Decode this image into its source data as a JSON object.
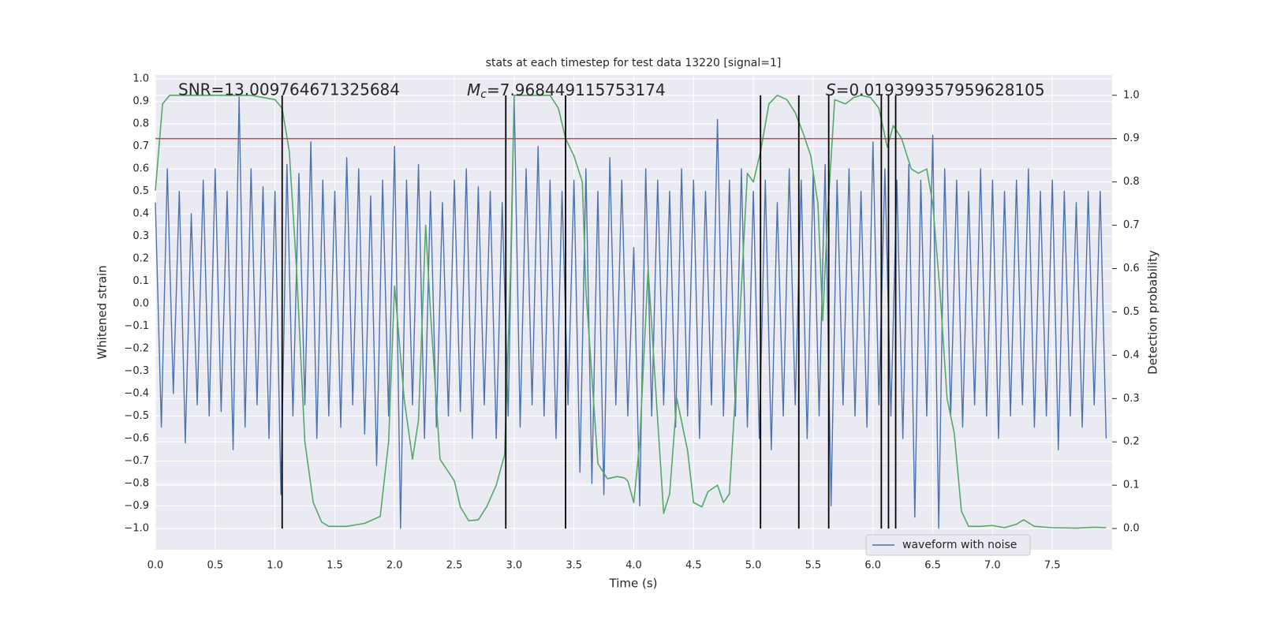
{
  "chart_data": {
    "type": "line",
    "title": "stats at each timestep for test data 13220 [signal=1]",
    "x_label": "Time (s)",
    "y_label": "Whitened strain",
    "y2_label": "Detection probability",
    "annotations": {
      "snr": "SNR=13.009764671325684",
      "mc": {
        "symbol": "M",
        "subscript": "c",
        "text": "=7.968449115753174"
      },
      "s": {
        "symbol": "S",
        "text": "=0.019399357959628105"
      }
    },
    "xlim": [
      0,
      8.0
    ],
    "ylim": [
      -1.095,
      1.018
    ],
    "y2lim": [
      -0.049,
      1.047
    ],
    "xticks": [
      {
        "value": 0,
        "label": "0.0"
      },
      0.5,
      {
        "value": 1,
        "label": "1.0"
      },
      1.5,
      {
        "value": 2,
        "label": "2.0"
      },
      2.5,
      {
        "value": 3,
        "label": "3.0"
      },
      3.5,
      {
        "value": 4,
        "label": "4.0"
      },
      4.5,
      {
        "value": 5,
        "label": "5.0"
      },
      5.5,
      {
        "value": 6,
        "label": "6.0"
      },
      6.5,
      {
        "value": 7,
        "label": "7.0"
      },
      7.5
    ],
    "yticks": [
      {
        "value": -1,
        "label": "−1.0"
      },
      {
        "value": -0.9,
        "label": "−0.9"
      },
      {
        "value": -0.8,
        "label": "−0.8"
      },
      {
        "value": -0.7,
        "label": "−0.7"
      },
      {
        "value": -0.6,
        "label": "−0.6"
      },
      {
        "value": -0.5,
        "label": "−0.5"
      },
      {
        "value": -0.4,
        "label": "−0.4"
      },
      {
        "value": -0.3,
        "label": "−0.3"
      },
      {
        "value": -0.2,
        "label": "−0.2"
      },
      {
        "value": -0.1,
        "label": "−0.1"
      },
      {
        "value": 0,
        "label": "0.0"
      },
      0.1,
      0.2,
      0.3,
      0.4,
      0.5,
      0.6,
      0.7,
      0.8,
      0.9,
      {
        "value": 1,
        "label": "1.0"
      }
    ],
    "y2ticks": [
      {
        "value": 0,
        "label": "0.0"
      },
      0.1,
      0.2,
      0.3,
      0.4,
      0.5,
      0.6,
      0.7,
      0.8,
      0.9,
      {
        "value": 1,
        "label": "1.0"
      }
    ],
    "grid": true,
    "legend": "lower right",
    "threshold": {
      "value": 0.9,
      "color": "#c44e52",
      "axis": "y2"
    },
    "vlines": {
      "x": [
        1.06,
        2.93,
        3.43,
        5.06,
        5.38,
        5.63,
        6.07,
        6.13,
        6.19
      ],
      "ymin": 0,
      "ymax": 1,
      "axis": "y2",
      "color": "#000000"
    },
    "series": [
      {
        "name": "waveform with noise",
        "color": "#4c72b0",
        "x": [
          0,
          0.05,
          0.1,
          0.15,
          0.2,
          0.25,
          0.3,
          0.35,
          0.4,
          0.45,
          0.5,
          0.55,
          0.6,
          0.65,
          0.7,
          0.75,
          0.8,
          0.85,
          0.9,
          0.95,
          1,
          1.05,
          1.1,
          1.15,
          1.2,
          1.25,
          1.3,
          1.35,
          1.4,
          1.45,
          1.5,
          1.55,
          1.6,
          1.65,
          1.7,
          1.75,
          1.8,
          1.85,
          1.9,
          1.95,
          2,
          2.05,
          2.1,
          2.15,
          2.2,
          2.25,
          2.3,
          2.35,
          2.4,
          2.45,
          2.5,
          2.55,
          2.6,
          2.65,
          2.7,
          2.75,
          2.8,
          2.85,
          2.9,
          2.95,
          3,
          3.05,
          3.1,
          3.15,
          3.2,
          3.25,
          3.3,
          3.35,
          3.4,
          3.45,
          3.5,
          3.55,
          3.6,
          3.65,
          3.7,
          3.75,
          3.8,
          3.85,
          3.9,
          3.95,
          4,
          4.05,
          4.1,
          4.15,
          4.2,
          4.25,
          4.3,
          4.35,
          4.4,
          4.45,
          4.5,
          4.55,
          4.6,
          4.65,
          4.7,
          4.75,
          4.8,
          4.85,
          4.9,
          4.95,
          5,
          5.05,
          5.1,
          5.15,
          5.2,
          5.25,
          5.3,
          5.35,
          5.4,
          5.45,
          5.5,
          5.55,
          5.6,
          5.65,
          5.7,
          5.75,
          5.8,
          5.85,
          5.9,
          5.95,
          6,
          6.05,
          6.1,
          6.15,
          6.2,
          6.25,
          6.3,
          6.35,
          6.4,
          6.45,
          6.5,
          6.55,
          6.6,
          6.65,
          6.7,
          6.75,
          6.8,
          6.85,
          6.9,
          6.95,
          7,
          7.05,
          7.1,
          7.15,
          7.2,
          7.25,
          7.3,
          7.35,
          7.4,
          7.45,
          7.5,
          7.55,
          7.6,
          7.65,
          7.7,
          7.75,
          7.8,
          7.85,
          7.9,
          7.95
        ],
        "values": [
          0.45,
          -0.55,
          0.6,
          -0.4,
          0.5,
          -0.62,
          0.4,
          -0.45,
          0.55,
          -0.5,
          0.6,
          -0.48,
          0.5,
          -0.65,
          0.92,
          -0.55,
          0.6,
          -0.45,
          0.52,
          -0.6,
          0.5,
          -0.85,
          0.62,
          -0.5,
          0.58,
          -0.45,
          0.72,
          -0.6,
          0.55,
          -0.5,
          0.5,
          -0.55,
          0.65,
          -0.45,
          0.6,
          -0.58,
          0.48,
          -0.72,
          0.55,
          -0.5,
          0.7,
          -1.0,
          0.55,
          -0.45,
          0.62,
          -0.6,
          0.5,
          -0.55,
          0.45,
          -0.5,
          0.55,
          -0.48,
          0.6,
          -0.6,
          0.52,
          -0.45,
          0.5,
          -0.6,
          0.45,
          -0.5,
          0.92,
          -0.55,
          0.6,
          -0.45,
          0.7,
          -0.5,
          0.55,
          -0.6,
          0.5,
          -0.45,
          0.55,
          -0.75,
          0.6,
          -0.8,
          0.5,
          -0.85,
          0.65,
          -0.45,
          0.55,
          -0.5,
          0.25,
          -0.9,
          0.6,
          -0.5,
          0.55,
          -0.45,
          0.5,
          -0.55,
          0.6,
          -0.5,
          0.55,
          -0.6,
          0.5,
          -0.45,
          0.82,
          -0.5,
          0.55,
          -0.5,
          0.6,
          -0.55,
          0.5,
          -0.6,
          0.55,
          -0.65,
          0.45,
          -0.5,
          0.6,
          -0.45,
          0.55,
          -0.6,
          0.58,
          -0.5,
          0.62,
          -0.9,
          0.55,
          -0.45,
          0.6,
          -0.5,
          0.5,
          -0.55,
          0.72,
          -0.45,
          0.6,
          -0.5,
          0.55,
          -0.6,
          0.62,
          -0.95,
          0.55,
          -0.5,
          0.75,
          -1.0,
          0.6,
          -0.5,
          0.55,
          -0.55,
          0.5,
          -0.45,
          0.6,
          -0.5,
          0.55,
          -0.6,
          0.5,
          -0.5,
          0.55,
          -0.45,
          0.6,
          -0.55,
          0.5,
          -0.5,
          0.55,
          -0.65,
          0.5,
          -0.5,
          0.45,
          -0.55,
          0.5,
          -0.45,
          0.5,
          -0.6
        ]
      },
      {
        "name": "detection probability",
        "color": "#55a868",
        "axis": "y2",
        "legend": false,
        "x": [
          0,
          0.06,
          0.12,
          0.3,
          0.5,
          0.8,
          1,
          1.06,
          1.12,
          1.18,
          1.25,
          1.32,
          1.39,
          1.45,
          1.6,
          1.75,
          1.88,
          1.95,
          2,
          2.08,
          2.15,
          2.2,
          2.26,
          2.3,
          2.38,
          2.5,
          2.55,
          2.62,
          2.7,
          2.77,
          2.85,
          2.92,
          2.97,
          3,
          3.1,
          3.3,
          3.37,
          3.43,
          3.5,
          3.57,
          3.6,
          3.7,
          3.78,
          3.86,
          3.92,
          3.95,
          4,
          4.05,
          4.12,
          4.2,
          4.25,
          4.3,
          4.36,
          4.45,
          4.5,
          4.57,
          4.62,
          4.7,
          4.75,
          4.8,
          4.88,
          4.95,
          5,
          5.06,
          5.13,
          5.2,
          5.28,
          5.35,
          5.42,
          5.48,
          5.54,
          5.58,
          5.62,
          5.68,
          5.77,
          5.84,
          5.9,
          5.98,
          6.05,
          6.12,
          6.17,
          6.24,
          6.32,
          6.38,
          6.45,
          6.5,
          6.56,
          6.62,
          6.68,
          6.74,
          6.8,
          6.9,
          7,
          7.1,
          7.2,
          7.26,
          7.35,
          7.5,
          7.7,
          7.85,
          7.95
        ],
        "values": [
          0.78,
          0.98,
          1,
          1,
          1,
          1,
          0.99,
          0.97,
          0.87,
          0.6,
          0.2,
          0.06,
          0.015,
          0.005,
          0.005,
          0.012,
          0.028,
          0.2,
          0.56,
          0.3,
          0.16,
          0.25,
          0.7,
          0.5,
          0.16,
          0.11,
          0.05,
          0.018,
          0.02,
          0.05,
          0.1,
          0.17,
          0.6,
          1,
          1,
          1,
          0.97,
          0.9,
          0.86,
          0.8,
          0.55,
          0.15,
          0.115,
          0.12,
          0.117,
          0.11,
          0.06,
          0.2,
          0.6,
          0.25,
          0.035,
          0.08,
          0.3,
          0.18,
          0.06,
          0.05,
          0.085,
          0.1,
          0.06,
          0.08,
          0.45,
          0.82,
          0.8,
          0.87,
          0.98,
          1,
          0.99,
          0.96,
          0.91,
          0.86,
          0.75,
          0.48,
          0.72,
          0.99,
          0.98,
          0.995,
          1,
          0.995,
          0.97,
          0.88,
          0.93,
          0.9,
          0.83,
          0.82,
          0.83,
          0.75,
          0.55,
          0.3,
          0.22,
          0.04,
          0.005,
          0.005,
          0.007,
          0.002,
          0.01,
          0.02,
          0.005,
          0.002,
          0.001,
          0.003,
          0.002
        ]
      }
    ]
  }
}
